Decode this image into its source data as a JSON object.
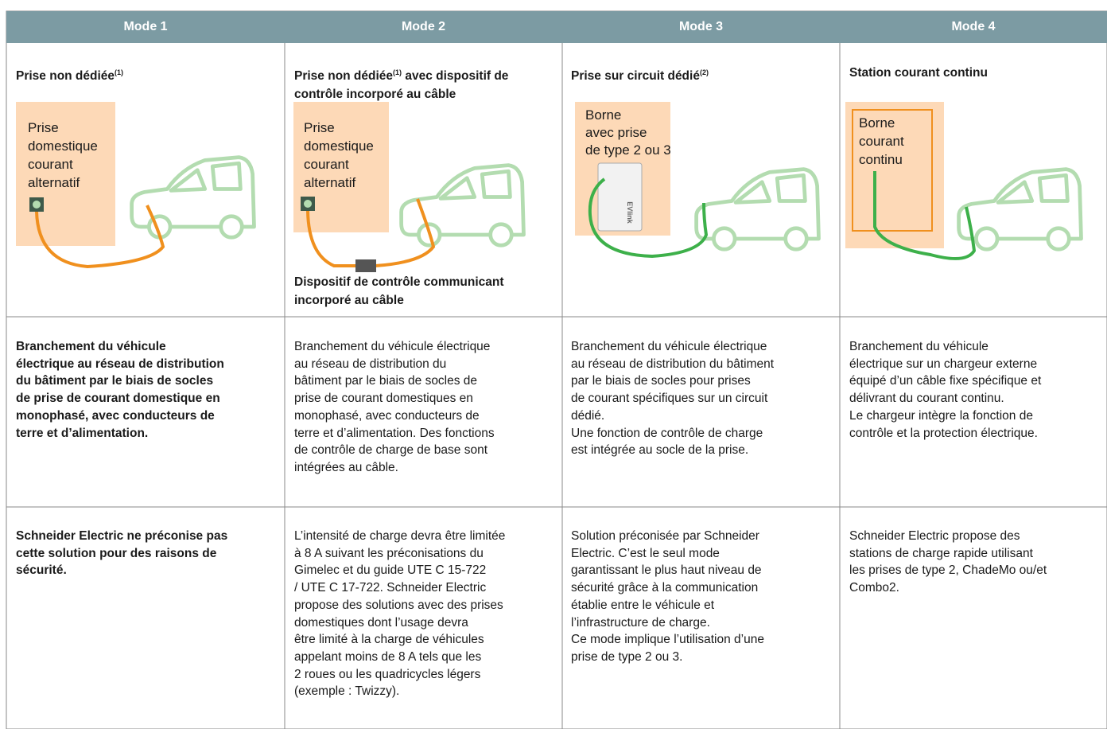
{
  "table": {
    "headers": [
      "Mode 1",
      "Mode 2",
      "Mode 3",
      "Mode 4"
    ],
    "columns": [
      {
        "title": "Prise non dédiée",
        "title_note": "(1)",
        "label_lines": [
          "Prise",
          "domestique",
          "courant",
          "alternatif"
        ],
        "description_lines": [
          "Branchement du véhicule",
          "électrique au réseau de distribution",
          "du bâtiment par le biais de socles",
          "de prise de courant domestique en",
          "monophasé, avec conducteurs de",
          "terre et d’alimentation."
        ],
        "recommendation_lines": [
          "Schneider Electric ne préconise pas",
          "cette solution pour des raisons de",
          "sécurité."
        ]
      },
      {
        "title": "Prise non dédiée",
        "title_note": "(1)",
        "title_rest": "avec dispositif de contrôle incorporé au câble",
        "label_lines": [
          "Prise",
          "domestique",
          "courant",
          "alternatif"
        ],
        "caption_lines": [
          "Dispositif de contrôle communicant",
          "incorporé au câble"
        ],
        "description_lines": [
          "Branchement du véhicule électrique",
          "au réseau de distribution du",
          "bâtiment par le biais de socles de",
          "prise de courant domestiques en",
          "monophasé, avec conducteurs de",
          "terre et d’alimentation. Des fonctions",
          "de contrôle de charge de base sont",
          "intégrées au câble."
        ],
        "recommendation_lines": [
          "L’intensité de charge devra être limitée",
          "à 8 A suivant les préconisations du",
          "Gimelec et du guide UTE C 15-722",
          "/ UTE C 17-722. Schneider Electric",
          "propose des solutions avec des prises",
          "domestiques dont l’usage devra",
          "être limité à la charge de véhicules",
          "appelant moins de 8 A tels que les",
          "2 roues ou les quadricycles légers",
          "(exemple : Twizzy)."
        ]
      },
      {
        "title": "Prise sur circuit dédié",
        "title_note": "(2)",
        "label_lines": [
          "Borne",
          "avec prise",
          "de type 2 ou 3"
        ],
        "device_brand": "EVlink",
        "description_lines": [
          "Branchement du véhicule électrique",
          "au réseau de distribution du bâtiment",
          "par le biais de socles pour prises",
          "de courant spécifiques sur un circuit",
          "dédié.",
          "Une fonction de contrôle de charge",
          "est intégrée au socle de la prise."
        ],
        "recommendation_lines": [
          "Solution préconisée par Schneider",
          "Electric. C’est le seul mode",
          "garantissant le plus haut niveau de",
          "sécurité grâce à la communication",
          "établie entre le véhicule et",
          "l’infrastructure de charge.",
          "Ce mode implique l’utilisation d’une",
          "prise de type 2 ou 3."
        ]
      },
      {
        "title": "Station courant continu",
        "label_lines": [
          "Borne",
          "courant",
          "continu"
        ],
        "description_lines": [
          "Branchement du véhicule",
          "électrique sur un chargeur externe",
          "équipé d’un câble fixe spécifique et",
          "délivrant du courant continu.",
          "Le chargeur intègre la fonction de",
          "contrôle et la protection électrique."
        ],
        "recommendation_lines": [
          "Schneider Electric propose des",
          "stations de charge rapide utilisant",
          "les prises de type 2, ChadeMo ou/et",
          "Combo2."
        ]
      }
    ]
  }
}
